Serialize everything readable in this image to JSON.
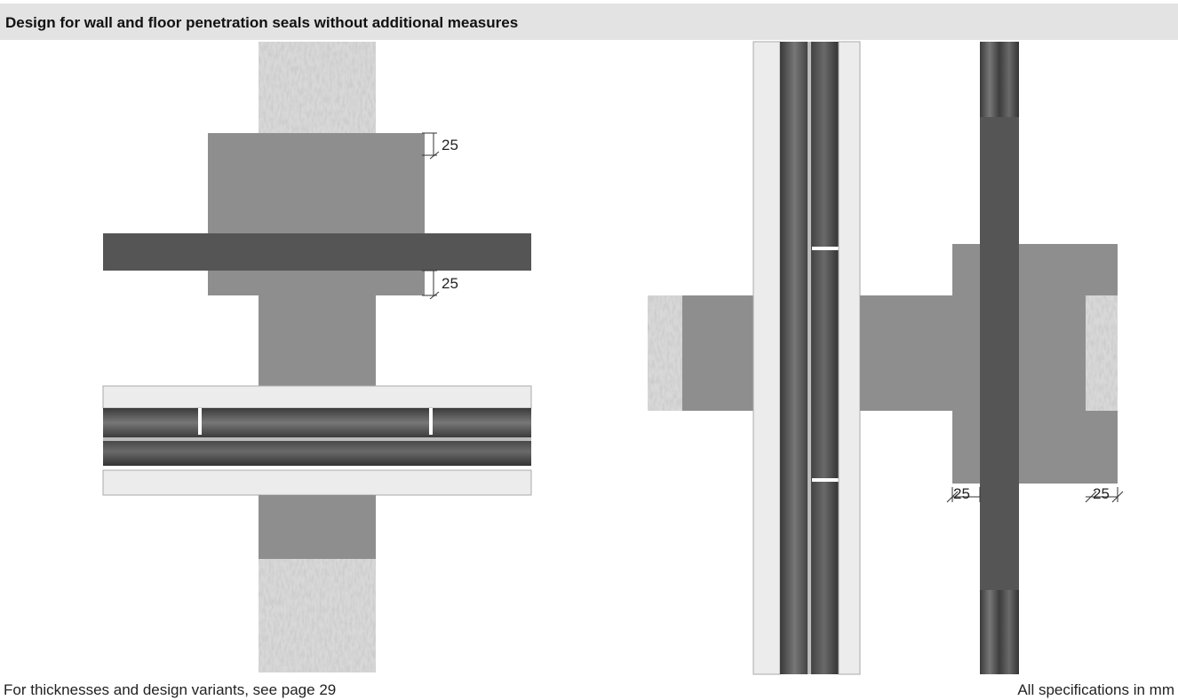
{
  "header": {
    "title": "Design for wall and floor penetration seals without additional measures"
  },
  "dimensions": {
    "left": [
      "25",
      "25"
    ],
    "right": [
      "25",
      "25"
    ]
  },
  "footer": {
    "left": "For thicknesses and design variants, see page 29",
    "right": "All specifications in mm"
  }
}
